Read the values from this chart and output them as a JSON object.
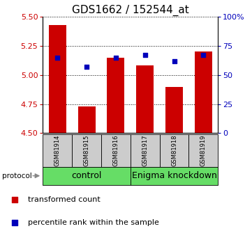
{
  "title": "GDS1662 / 152544_at",
  "samples": [
    "GSM81914",
    "GSM81915",
    "GSM81916",
    "GSM81917",
    "GSM81918",
    "GSM81919"
  ],
  "transformed_count": [
    5.43,
    4.73,
    5.15,
    5.08,
    4.9,
    5.2
  ],
  "percentile_rank": [
    65,
    57,
    65,
    67,
    62,
    67
  ],
  "ylim_left": [
    4.5,
    5.5
  ],
  "ylim_right": [
    0,
    100
  ],
  "yticks_left": [
    4.5,
    4.75,
    5.0,
    5.25,
    5.5
  ],
  "yticks_right": [
    0,
    25,
    50,
    75,
    100
  ],
  "bar_color": "#cc0000",
  "square_color": "#0000bb",
  "bar_bottom": 4.5,
  "grid_color": "#888888",
  "control_label": "control",
  "knockdown_label": "Enigma knockdown",
  "protocol_label": "protocol",
  "legend_bar_label": "transformed count",
  "legend_square_label": "percentile rank within the sample",
  "tick_label_color_left": "#cc0000",
  "tick_label_color_right": "#0000bb",
  "bg_color": "#ffffff",
  "sample_box_color": "#cccccc",
  "group_box_color": "#66dd66",
  "title_fontsize": 11,
  "axis_fontsize": 8,
  "legend_fontsize": 8,
  "sample_fontsize": 6,
  "group_fontsize": 9
}
